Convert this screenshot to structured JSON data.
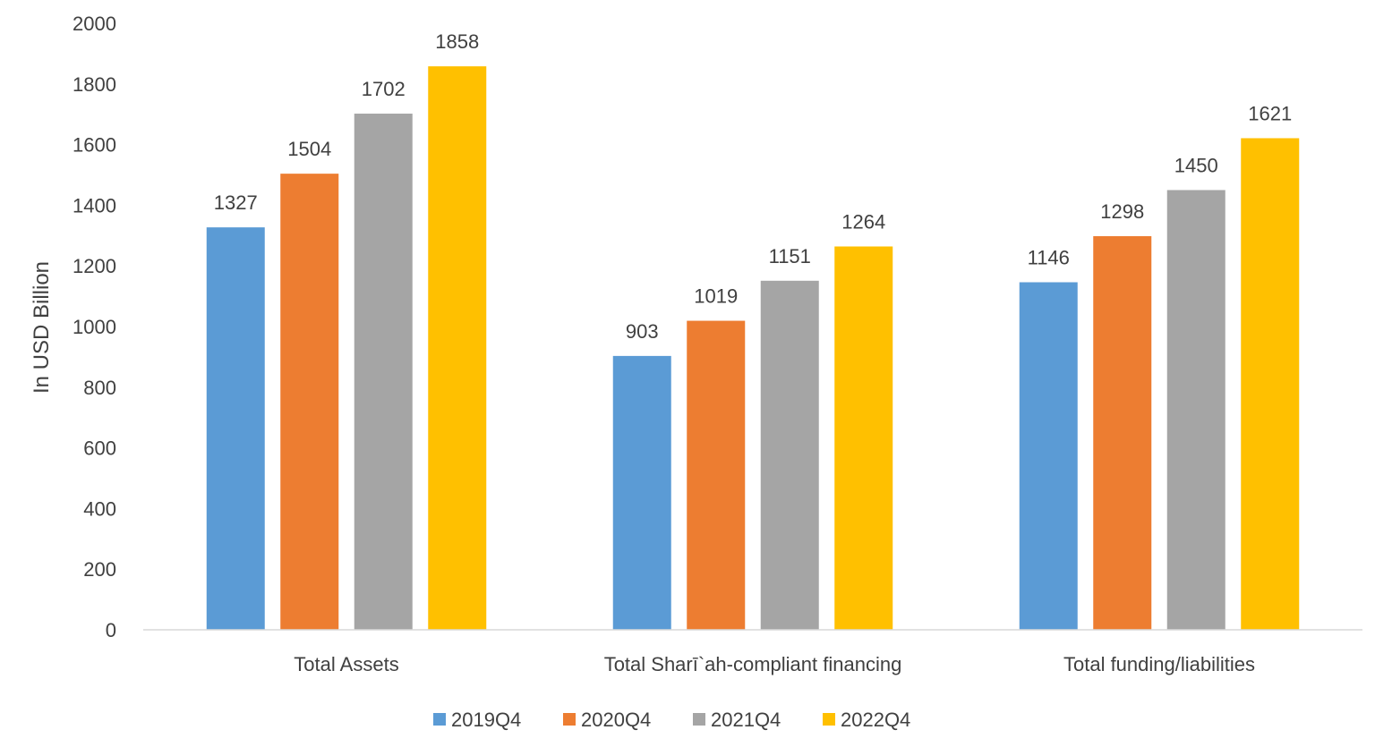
{
  "chart_data": {
    "type": "bar",
    "title": "",
    "xlabel": "",
    "ylabel": "In USD Billion",
    "ylim": [
      0,
      2000
    ],
    "yticks": [
      0,
      200,
      400,
      600,
      800,
      1000,
      1200,
      1400,
      1600,
      1800,
      2000
    ],
    "grid": false,
    "legend_position": "bottom",
    "categories": [
      "Total Assets",
      "Total Sharī`ah-compliant financing",
      "Total funding/liabilities"
    ],
    "series": [
      {
        "name": "2019Q4",
        "color": "#5B9BD5",
        "values": [
          1327,
          903,
          1146
        ]
      },
      {
        "name": "2020Q4",
        "color": "#ED7D31",
        "values": [
          1504,
          1019,
          1298
        ]
      },
      {
        "name": "2021Q4",
        "color": "#A5A5A5",
        "values": [
          1702,
          1151,
          1450
        ]
      },
      {
        "name": "2022Q4",
        "color": "#FFC000",
        "values": [
          1858,
          1264,
          1621
        ]
      }
    ]
  }
}
